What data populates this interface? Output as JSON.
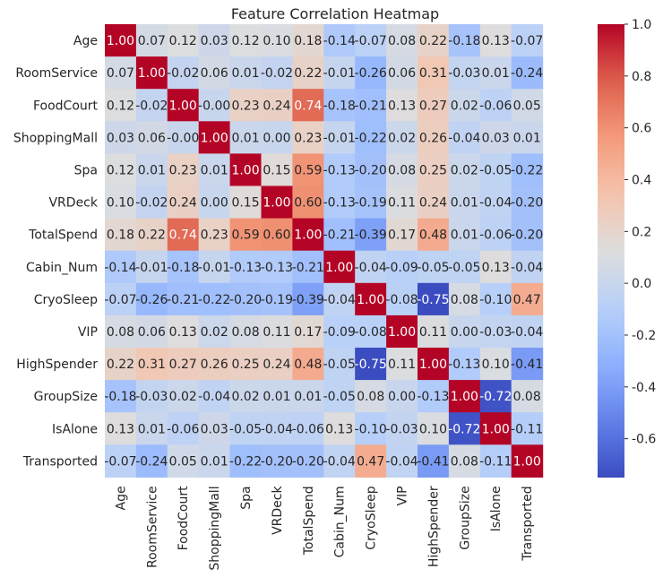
{
  "chart_data": {
    "type": "heatmap",
    "title": "Feature Correlation Heatmap",
    "colormap": "coolwarm",
    "vmin": -0.75,
    "vmax": 1.0,
    "labels": [
      "Age",
      "RoomService",
      "FoodCourt",
      "ShoppingMall",
      "Spa",
      "VRDeck",
      "TotalSpend",
      "Cabin_Num",
      "CryoSleep",
      "VIP",
      "HighSpender",
      "GroupSize",
      "IsAlone",
      "Transported"
    ],
    "values": [
      [
        1.0,
        0.07,
        0.12,
        0.03,
        0.12,
        0.1,
        0.18,
        -0.14,
        -0.07,
        0.08,
        0.22,
        -0.18,
        0.13,
        -0.07
      ],
      [
        0.07,
        1.0,
        -0.02,
        0.06,
        0.01,
        -0.02,
        0.22,
        -0.01,
        -0.26,
        0.06,
        0.31,
        -0.03,
        0.01,
        -0.24
      ],
      [
        0.12,
        -0.02,
        1.0,
        -0.0,
        0.23,
        0.24,
        0.74,
        -0.18,
        -0.21,
        0.13,
        0.27,
        0.02,
        -0.06,
        0.05
      ],
      [
        0.03,
        0.06,
        -0.0,
        1.0,
        0.01,
        0.0,
        0.23,
        -0.01,
        -0.22,
        0.02,
        0.26,
        -0.04,
        0.03,
        0.01
      ],
      [
        0.12,
        0.01,
        0.23,
        0.01,
        1.0,
        0.15,
        0.59,
        -0.13,
        -0.2,
        0.08,
        0.25,
        0.02,
        -0.05,
        -0.22
      ],
      [
        0.1,
        -0.02,
        0.24,
        0.0,
        0.15,
        1.0,
        0.6,
        -0.13,
        -0.19,
        0.11,
        0.24,
        0.01,
        -0.04,
        -0.2
      ],
      [
        0.18,
        0.22,
        0.74,
        0.23,
        0.59,
        0.6,
        1.0,
        -0.21,
        -0.39,
        0.17,
        0.48,
        0.01,
        -0.06,
        -0.2
      ],
      [
        -0.14,
        -0.01,
        -0.18,
        -0.01,
        -0.13,
        -0.13,
        -0.21,
        1.0,
        -0.04,
        -0.09,
        -0.05,
        -0.05,
        0.13,
        -0.04
      ],
      [
        -0.07,
        -0.26,
        -0.21,
        -0.22,
        -0.2,
        -0.19,
        -0.39,
        -0.04,
        1.0,
        -0.08,
        -0.75,
        0.08,
        -0.1,
        0.47
      ],
      [
        0.08,
        0.06,
        0.13,
        0.02,
        0.08,
        0.11,
        0.17,
        -0.09,
        -0.08,
        1.0,
        0.11,
        0.0,
        -0.03,
        -0.04
      ],
      [
        0.22,
        0.31,
        0.27,
        0.26,
        0.25,
        0.24,
        0.48,
        -0.05,
        -0.75,
        0.11,
        1.0,
        -0.13,
        0.1,
        -0.41
      ],
      [
        -0.18,
        -0.03,
        0.02,
        -0.04,
        0.02,
        0.01,
        0.01,
        -0.05,
        0.08,
        0.0,
        -0.13,
        1.0,
        -0.72,
        0.08
      ],
      [
        0.13,
        0.01,
        -0.06,
        0.03,
        -0.05,
        -0.04,
        -0.06,
        0.13,
        -0.1,
        -0.03,
        0.1,
        -0.72,
        1.0,
        -0.11
      ],
      [
        -0.07,
        -0.24,
        0.05,
        0.01,
        -0.22,
        -0.2,
        -0.2,
        -0.04,
        0.47,
        -0.04,
        -0.41,
        0.08,
        -0.11,
        1.0
      ]
    ],
    "colorbar": {
      "ticks": [
        1.0,
        0.8,
        0.6,
        0.4,
        0.2,
        0.0,
        -0.2,
        -0.4,
        -0.6
      ],
      "tick_labels": [
        "1.0",
        "0.8",
        "0.6",
        "0.4",
        "0.2",
        "0.0",
        "-0.2",
        "-0.4",
        "-0.6"
      ]
    }
  }
}
